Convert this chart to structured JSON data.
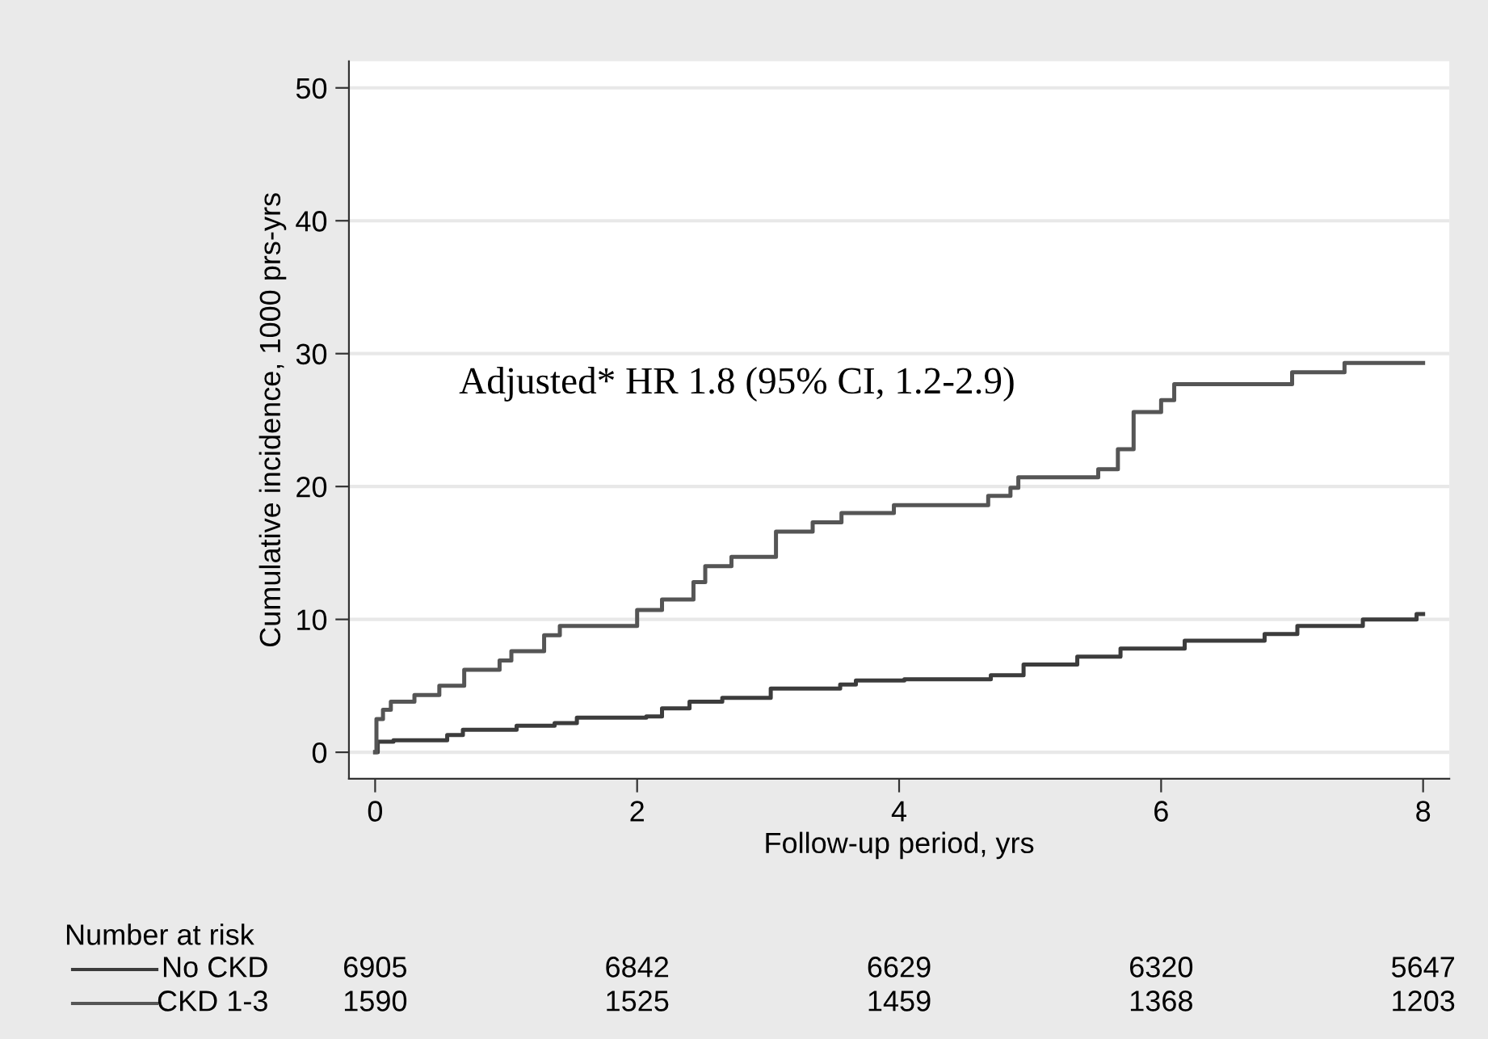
{
  "chart_data": {
    "type": "step",
    "xlabel": "Follow-up period, yrs",
    "ylabel": "Cumulative incidence, 1000 prs-yrs",
    "xlim": [
      -0.2,
      8.2
    ],
    "ylim": [
      -2,
      52
    ],
    "xticks": [
      0,
      2,
      4,
      6,
      8
    ],
    "yticks": [
      0,
      10,
      20,
      30,
      40,
      50
    ],
    "grid": "y",
    "legend": "bottom",
    "series": [
      {
        "name": "No CKD",
        "color": "#3c3c3c",
        "x": [
          0,
          0.02,
          0.14,
          0.55,
          0.67,
          1.08,
          1.37,
          1.54,
          2.07,
          2.19,
          2.4,
          2.65,
          3.02,
          3.55,
          3.67,
          4.04,
          4.7,
          4.95,
          5.36,
          5.69,
          6.18,
          6.79,
          7.04,
          7.54,
          7.95,
          8.0
        ],
        "values": [
          0,
          0.8,
          0.9,
          1.3,
          1.7,
          2.0,
          2.2,
          2.6,
          2.7,
          3.3,
          3.8,
          4.1,
          4.8,
          5.1,
          5.4,
          5.5,
          5.8,
          6.6,
          7.2,
          7.8,
          8.4,
          8.9,
          9.5,
          10.0,
          10.4,
          10.4
        ]
      },
      {
        "name": "CKD 1-3",
        "color": "#555555",
        "x": [
          0,
          0.01,
          0.06,
          0.12,
          0.3,
          0.49,
          0.68,
          0.95,
          1.04,
          1.29,
          1.41,
          2.0,
          2.19,
          2.43,
          2.52,
          2.72,
          3.06,
          3.34,
          3.56,
          3.96,
          4.68,
          4.85,
          4.91,
          5.52,
          5.67,
          5.79,
          6.0,
          6.1,
          7.0,
          7.4,
          8.0
        ],
        "values": [
          0,
          2.5,
          3.2,
          3.8,
          4.3,
          5.0,
          6.2,
          6.9,
          7.6,
          8.8,
          9.5,
          10.7,
          11.5,
          12.8,
          14.0,
          14.7,
          16.6,
          17.3,
          18.0,
          18.6,
          19.3,
          19.9,
          20.7,
          21.3,
          22.8,
          25.6,
          26.5,
          27.7,
          28.6,
          29.3,
          29.3
        ]
      }
    ],
    "annotations": [
      "Number at risk",
      "Adjusted* HR 1.8 (95% CI, 1.2-2.9)",
      "6905",
      "6842",
      "6629",
      "6320",
      "5647",
      "1590",
      "1525",
      "1459",
      "1368",
      "1203"
    ]
  }
}
